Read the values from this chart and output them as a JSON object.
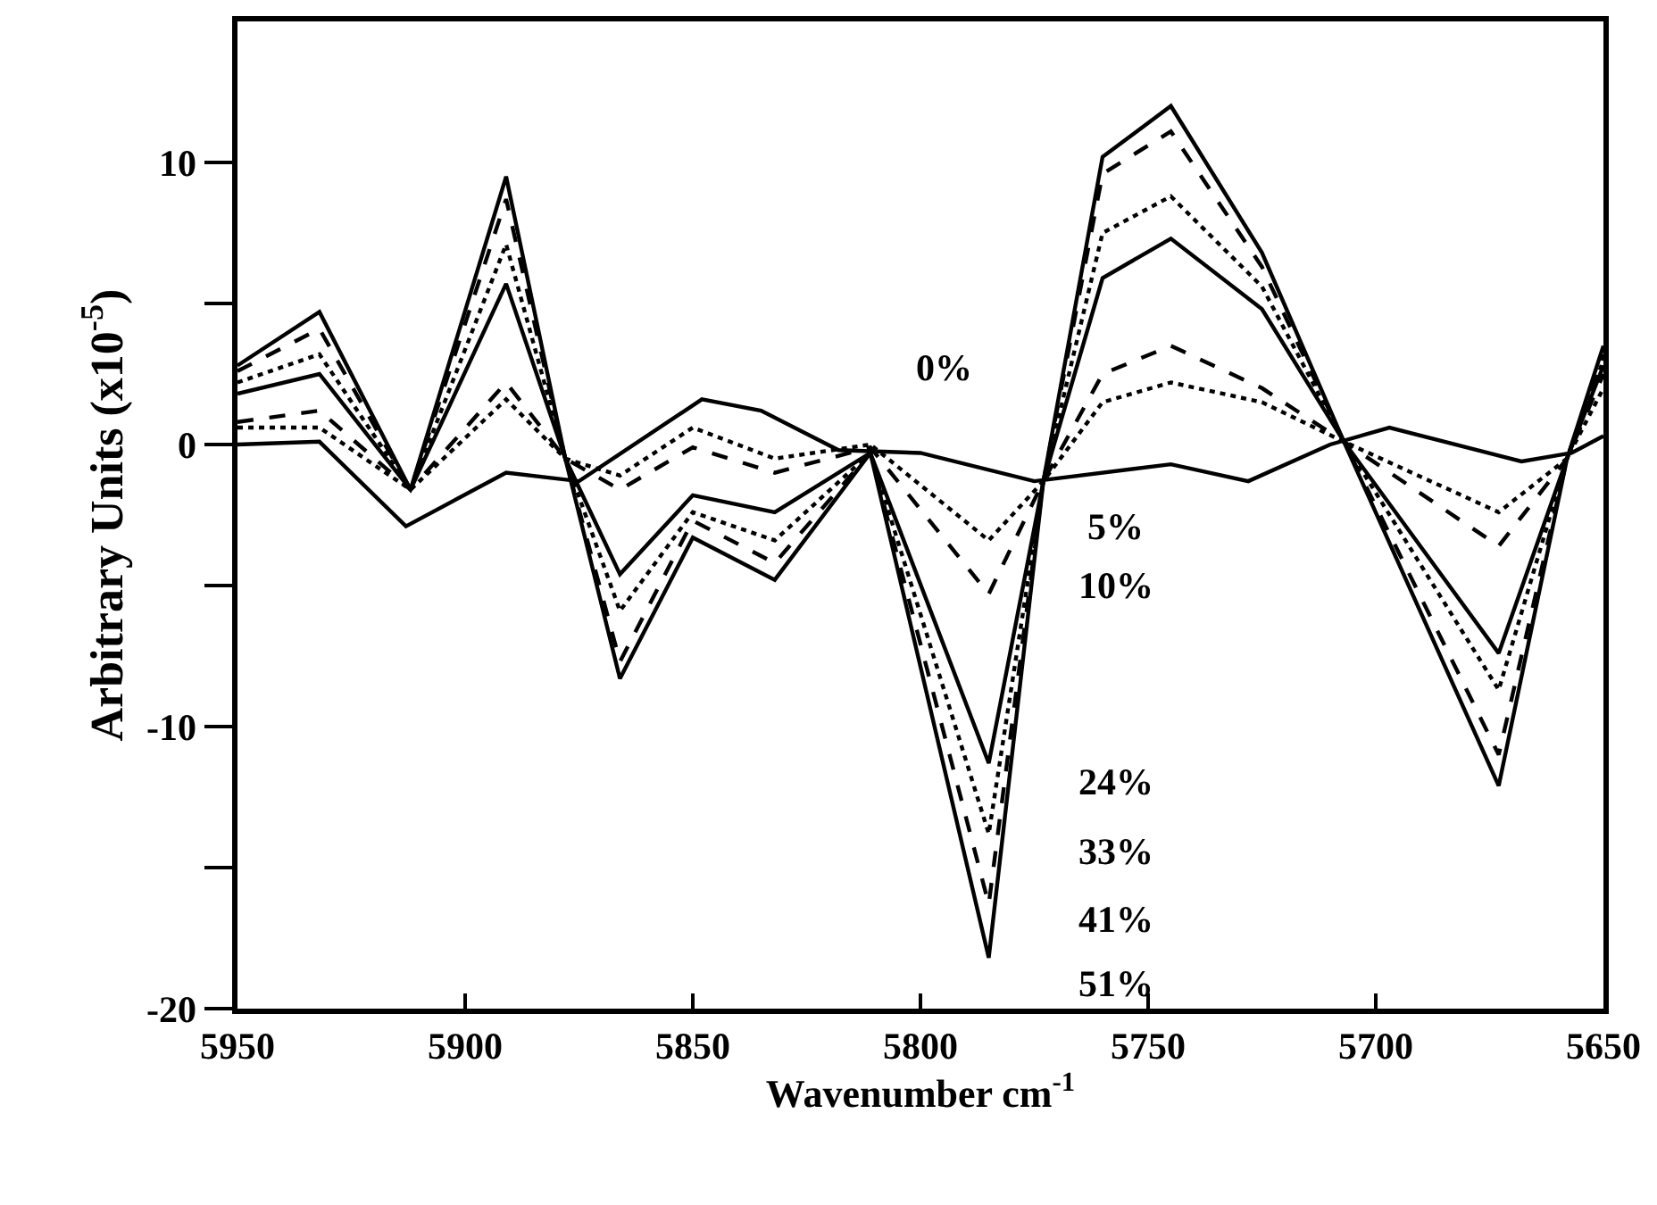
{
  "chart_data": {
    "type": "line",
    "xlabel": "Wavenumber cm$^{-1}$",
    "ylabel": "Arbitrary Units (x10$^{-5}$)",
    "annotations": [
      "0%",
      "5%",
      "10%",
      "24%",
      "33%",
      "41%",
      "51%"
    ],
    "x": [
      5950,
      5932,
      5912,
      5891,
      5878,
      5866,
      5850,
      5832,
      5811,
      5785,
      5773,
      5760,
      5745,
      5725,
      5707,
      5673,
      5658,
      5650
    ],
    "series": [
      {
        "color": "#000000",
        "line_style": "solid",
        "x": [
          5950,
          5932,
          5913,
          5891,
          5875,
          5848,
          5835,
          5818,
          5800,
          5775,
          5745,
          5728,
          5710,
          5697,
          5668,
          5657,
          5650
        ],
        "values": [
          0,
          0.1,
          -2.9,
          -1.0,
          -1.3,
          1.6,
          1.2,
          -0.2,
          -0.3,
          -1.3,
          -0.7,
          -1.3,
          0,
          0.6,
          -0.6,
          -0.3,
          0.3
        ]
      },
      {
        "color": "#000000",
        "line_style": "dotted",
        "values": [
          0.6,
          0.6,
          -1.6,
          1.6,
          -0.5,
          -1.1,
          0.6,
          -0.5,
          0,
          -3.4,
          -1.3,
          1.5,
          2.2,
          1.5,
          0.1,
          -2.4,
          -0.5,
          2.0
        ]
      },
      {
        "color": "#000000",
        "line_style": "dashed",
        "values": [
          0.8,
          1.2,
          -1.6,
          2.2,
          -0.5,
          -1.6,
          -0.1,
          -1.0,
          -0.1,
          -5.3,
          -1.3,
          2.5,
          3.5,
          2.0,
          0.1,
          -3.6,
          -0.5,
          2.5
        ]
      },
      {
        "color": "#000000",
        "line_style": "solid",
        "values": [
          1.8,
          2.5,
          -1.6,
          5.7,
          -0.5,
          -4.6,
          -1.8,
          -2.4,
          -0.3,
          -11.3,
          -1.3,
          5.9,
          7.3,
          4.8,
          0.1,
          -7.4,
          -0.5,
          2.8
        ]
      },
      {
        "color": "#000000",
        "line_style": "dotted",
        "values": [
          2.2,
          3.2,
          -1.6,
          7.1,
          -0.5,
          -5.9,
          -2.4,
          -3.4,
          -0.3,
          -13.8,
          -1.3,
          7.5,
          8.8,
          5.6,
          0.1,
          -8.7,
          -0.5,
          3.0
        ]
      },
      {
        "color": "#000000",
        "line_style": "dashed",
        "values": [
          2.6,
          4.1,
          -1.6,
          8.7,
          -0.5,
          -7.7,
          -2.7,
          -4.2,
          -0.3,
          -16.3,
          -1.3,
          9.6,
          11.1,
          6.3,
          0.1,
          -11.0,
          -0.5,
          3.2
        ]
      },
      {
        "color": "#000000",
        "line_style": "solid",
        "values": [
          2.8,
          4.7,
          -1.6,
          9.5,
          -0.5,
          -8.3,
          -3.3,
          -4.8,
          -0.3,
          -18.2,
          -1.3,
          10.2,
          12.0,
          6.8,
          0.1,
          -12.1,
          -0.5,
          3.5
        ]
      }
    ],
    "xlim": [
      5950,
      5650
    ],
    "xticks": [
      5950,
      5900,
      5850,
      5800,
      5750,
      5700,
      5650
    ],
    "ylim": [
      -20,
      15
    ],
    "yticks": [
      -20,
      {
        "value": -15,
        "label": null
      },
      -10,
      {
        "value": -5,
        "label": null
      },
      0,
      {
        "value": 5,
        "label": null
      },
      10
    ],
    "grid": false,
    "legend": false,
    "marker": "none"
  }
}
